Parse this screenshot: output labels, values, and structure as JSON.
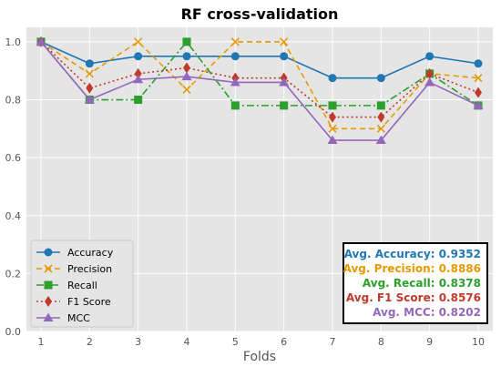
{
  "chart_data": {
    "type": "line",
    "title": "RF cross-validation",
    "xlabel": "Folds",
    "ylabel": "",
    "x": [
      1,
      2,
      3,
      4,
      5,
      6,
      7,
      8,
      9,
      10
    ],
    "xlim": [
      0.7,
      10.3
    ],
    "ylim": [
      0.0,
      1.05
    ],
    "yticks": [
      "0.0",
      "0.2",
      "0.4",
      "0.6",
      "0.8",
      "1.0"
    ],
    "xticks": [
      "1",
      "2",
      "3",
      "4",
      "5",
      "6",
      "7",
      "8",
      "9",
      "10"
    ],
    "grid": true,
    "legend_position": "bottom-left",
    "series": [
      {
        "name": "Accuracy",
        "color": "#1f77b4",
        "marker": "circle",
        "linestyle": "solid",
        "values": [
          1.0,
          0.925,
          0.95,
          0.95,
          0.95,
          0.95,
          0.875,
          0.875,
          0.95,
          0.925
        ]
      },
      {
        "name": "Precision",
        "color": "#e69a00",
        "marker": "x",
        "linestyle": "dashed",
        "values": [
          1.0,
          0.89,
          1.0,
          0.835,
          1.0,
          1.0,
          0.7,
          0.7,
          0.89,
          0.875
        ]
      },
      {
        "name": "Recall",
        "color": "#2ca02c",
        "marker": "square",
        "linestyle": "dashdot",
        "values": [
          1.0,
          0.8,
          0.8,
          1.0,
          0.78,
          0.78,
          0.78,
          0.78,
          0.89,
          0.78
        ]
      },
      {
        "name": "F1 Score",
        "color": "#c0392b",
        "marker": "diamond",
        "linestyle": "dotted",
        "values": [
          1.0,
          0.84,
          0.89,
          0.91,
          0.875,
          0.875,
          0.74,
          0.74,
          0.89,
          0.825
        ]
      },
      {
        "name": "MCC",
        "color": "#9467bd",
        "marker": "triangle",
        "linestyle": "solid",
        "values": [
          1.0,
          0.8,
          0.87,
          0.88,
          0.86,
          0.86,
          0.66,
          0.66,
          0.86,
          0.78
        ]
      }
    ],
    "annotations": [
      {
        "text": "Avg. Accuracy: 0.9352",
        "color": "#1f77b4"
      },
      {
        "text": "Avg. Precision: 0.8886",
        "color": "#e69a00"
      },
      {
        "text": "Avg. Recall: 0.8378",
        "color": "#2ca02c"
      },
      {
        "text": "Avg. F1 Score: 0.8576",
        "color": "#c0392b"
      },
      {
        "text": "Avg. MCC: 0.8202",
        "color": "#9467bd"
      }
    ]
  }
}
